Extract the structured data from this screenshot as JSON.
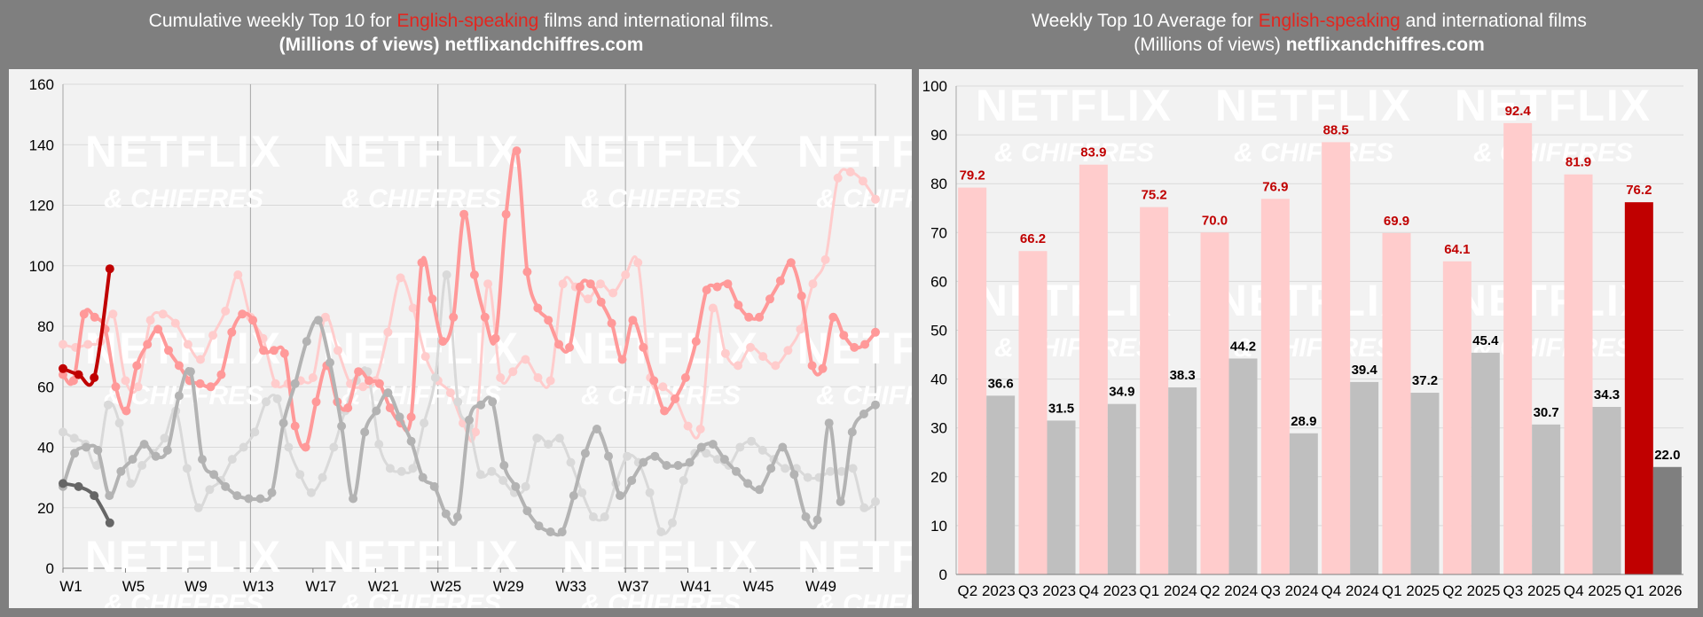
{
  "left": {
    "title_pre": "Cumulative weekly Top 10 for ",
    "title_hl": "English-speaking",
    "title_post": " films and international films.",
    "subtitle_pre": "(Millions of views) ",
    "subtitle_site": "netflixandchiffres.com"
  },
  "right": {
    "title_pre": "Weekly Top 10 Average for ",
    "title_hl": "English-speaking",
    "title_post": " and international films",
    "subtitle_pre": "(Millions of views) ",
    "subtitle_site": "netflixandchiffres.com"
  },
  "watermark": {
    "line1": "NETFLIX",
    "line2": "& CHIFFRES"
  },
  "colors": {
    "en_2026": "#c00000",
    "intl_2026": "#666666",
    "en_2025": "#ff9999",
    "intl_2025": "#b3b3b3",
    "en_2024": "#ffcccc",
    "intl_2024": "#d9d9d9",
    "avg_en": "#ffcccc",
    "avg_intl": "#bfbfbf",
    "avg_en_current": "#c00000",
    "avg_intl_current": "#7f7f7f"
  },
  "chart_data": [
    {
      "type": "line",
      "ylim": [
        0,
        160
      ],
      "yticks": [
        0,
        20,
        40,
        60,
        80,
        100,
        120,
        140,
        160
      ],
      "xlim": [
        1,
        53
      ],
      "xticks": [
        "W1",
        "W5",
        "W9",
        "W13",
        "W17",
        "W21",
        "W25",
        "W29",
        "W33",
        "W37",
        "W41",
        "W45",
        "W49"
      ],
      "grid": true,
      "series": [
        {
          "color_key": "en_2024",
          "values": [
            74,
            73,
            74,
            75,
            84,
            62,
            60,
            82,
            84,
            81,
            74,
            69,
            77,
            85,
            97,
            83,
            76,
            61,
            61,
            62,
            63,
            83,
            72,
            61,
            60,
            62,
            78,
            96,
            86,
            70,
            62,
            58,
            48,
            45,
            94,
            63,
            65,
            69,
            63,
            62,
            94,
            93,
            89,
            94,
            91,
            97,
            101,
            63,
            60,
            56,
            47,
            46,
            86,
            71,
            67,
            73,
            70,
            67,
            72,
            79,
            94,
            102,
            129,
            131,
            128,
            122
          ]
        },
        {
          "color_key": "intl_2024",
          "values": [
            45,
            43,
            41,
            34,
            54,
            48,
            28,
            34,
            38,
            43,
            52,
            33,
            20,
            26,
            29,
            36,
            40,
            45,
            55,
            56,
            40,
            31,
            25,
            30,
            40,
            52,
            62,
            65,
            41,
            33,
            32,
            33,
            48,
            63,
            97,
            55,
            47,
            31,
            32,
            29,
            25,
            27,
            43,
            41,
            43,
            35,
            25,
            17,
            17,
            28,
            37,
            35,
            25,
            12,
            15,
            29,
            38,
            38,
            36,
            34,
            40,
            42,
            39,
            36,
            33,
            33,
            30,
            30,
            32,
            32,
            33,
            20,
            22
          ]
        },
        {
          "color_key": "en_2025",
          "values": [
            64,
            62,
            84,
            83,
            79,
            60,
            52,
            67,
            74,
            79,
            72,
            67,
            62,
            61,
            60,
            64,
            78,
            84,
            82,
            72,
            72,
            71,
            47,
            40,
            55,
            67,
            55,
            53,
            65,
            62,
            61,
            53,
            48,
            50,
            101,
            89,
            75,
            83,
            117,
            97,
            83,
            76,
            117,
            138,
            98,
            86,
            82,
            74,
            73,
            93,
            94,
            88,
            81,
            69,
            82,
            73,
            62,
            52,
            56,
            63,
            75,
            92,
            93,
            94,
            87,
            83,
            83,
            89,
            95,
            101,
            90,
            67,
            66,
            83,
            77,
            73,
            74,
            78
          ]
        },
        {
          "color_key": "intl_2025",
          "values": [
            27,
            38,
            40,
            39,
            24,
            32,
            36,
            41,
            37,
            39,
            57,
            65,
            36,
            31,
            27,
            24,
            23,
            23,
            25,
            48,
            61,
            75,
            82,
            68,
            47,
            23,
            45,
            52,
            58,
            50,
            42,
            30,
            27,
            18,
            17,
            49,
            54,
            55,
            34,
            27,
            19,
            14,
            12,
            12,
            24,
            38,
            46,
            37,
            24,
            29,
            35,
            37,
            34,
            34,
            35,
            40,
            41,
            36,
            32,
            28,
            26,
            33,
            40,
            31,
            17,
            16,
            48,
            22,
            45,
            51,
            54
          ]
        },
        {
          "color_key": "en_2026",
          "values": [
            66,
            64,
            63,
            99
          ]
        },
        {
          "color_key": "intl_2026",
          "values": [
            28,
            27,
            24,
            15
          ]
        }
      ]
    },
    {
      "type": "bar",
      "ylim": [
        0,
        100
      ],
      "yticks": [
        0,
        10,
        20,
        30,
        40,
        50,
        60,
        70,
        80,
        90,
        100
      ],
      "categories": [
        "Q2 2023",
        "Q3 2023",
        "Q4 2023",
        "Q1 2024",
        "Q2 2024",
        "Q3 2024",
        "Q4 2024",
        "Q1 2025",
        "Q2 2025",
        "Q3 2025",
        "Q4 2025",
        "Q1 2026"
      ],
      "grid": true,
      "series": [
        {
          "color_key": "avg_en",
          "values": [
            79.2,
            66.2,
            83.9,
            75.2,
            70.0,
            76.9,
            88.5,
            69.9,
            64.1,
            92.4,
            81.9,
            76.2
          ]
        },
        {
          "color_key": "avg_intl",
          "values": [
            36.6,
            31.5,
            34.9,
            38.3,
            44.2,
            28.9,
            39.4,
            37.2,
            45.4,
            30.7,
            34.3,
            22.0
          ]
        }
      ],
      "labels_en": [
        "79.2",
        "66.2",
        "83.9",
        "75.2",
        "70.0",
        "76.9",
        "88.5",
        "69.9",
        "64.1",
        "92.4",
        "81.9",
        "76.2"
      ],
      "labels_intl": [
        "36.6",
        "31.5",
        "34.9",
        "38.3",
        "44.2",
        "28.9",
        "39.4",
        "37.2",
        "45.4",
        "30.7",
        "34.3",
        "22.0"
      ]
    }
  ]
}
